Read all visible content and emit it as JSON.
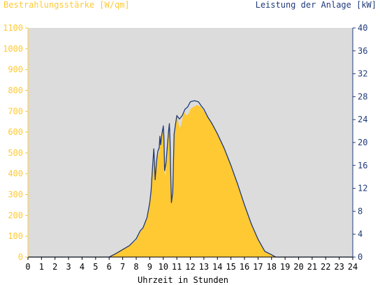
{
  "chart_data": {
    "type": "area",
    "left_axis_title": "Bestrahlungsstärke [W/qm]",
    "right_axis_title": "Leistung der Anlage [kW]",
    "xlabel": "Uhrzeit in Stunden",
    "x_ticks": [
      "0",
      "1",
      "2",
      "3",
      "4",
      "5",
      "6",
      "7",
      "8",
      "9",
      "10",
      "11",
      "12",
      "13",
      "14",
      "15",
      "16",
      "17",
      "18",
      "19",
      "20",
      "21",
      "22",
      "23",
      "24"
    ],
    "y_left_ticks": [
      "0",
      "100",
      "200",
      "300",
      "400",
      "500",
      "600",
      "700",
      "800",
      "900",
      "1000",
      "1100"
    ],
    "y_right_ticks": [
      "0",
      "4",
      "8",
      "12",
      "16",
      "20",
      "24",
      "28",
      "32",
      "36",
      "40"
    ],
    "xlim": [
      0,
      24
    ],
    "ylim_left": [
      0,
      1100
    ],
    "ylim_right": [
      0,
      40
    ],
    "grid": false,
    "colors": {
      "plot_background": "#dcdcdc",
      "left_axis": "#ffc933",
      "right_axis": "#1f3a7a",
      "irradiance_fill": "#ffc933",
      "power_line": "#1f3a7a"
    },
    "series": [
      {
        "name": "Bestrahlungsstärke [W/qm]",
        "axis": "left",
        "kind": "area",
        "x": [
          0,
          6.0,
          6.2,
          6.5,
          7.0,
          7.5,
          8.0,
          8.3,
          8.5,
          8.8,
          9.0,
          9.1,
          9.2,
          9.3,
          9.35,
          9.4,
          9.5,
          9.6,
          9.65,
          9.7,
          9.75,
          9.8,
          9.9,
          9.95,
          10.0,
          10.05,
          10.1,
          10.15,
          10.2,
          10.3,
          10.4,
          10.45,
          10.5,
          10.55,
          10.6,
          10.7,
          10.8,
          10.9,
          11.0,
          11.05,
          11.1,
          11.2,
          11.3,
          11.4,
          11.5,
          11.7,
          11.9,
          12.0,
          12.2,
          12.5,
          12.8,
          13.0,
          13.3,
          13.6,
          14.0,
          14.5,
          15.0,
          15.5,
          16.0,
          16.5,
          17.0,
          17.5,
          18.0,
          18.3,
          18.5,
          18.8,
          19.0,
          19.2,
          24
        ],
        "y": [
          0,
          0,
          10,
          20,
          40,
          55,
          80,
          120,
          140,
          190,
          260,
          310,
          420,
          470,
          430,
          370,
          460,
          500,
          480,
          520,
          580,
          530,
          580,
          600,
          620,
          560,
          410,
          380,
          430,
          520,
          610,
          640,
          560,
          400,
          260,
          300,
          580,
          640,
          680,
          690,
          650,
          620,
          630,
          660,
          700,
          680,
          690,
          710,
          720,
          730,
          720,
          700,
          670,
          640,
          590,
          520,
          440,
          350,
          250,
          160,
          90,
          30,
          10,
          0,
          0,
          0,
          0,
          0,
          0
        ]
      },
      {
        "name": "Leistung der Anlage [kW]",
        "axis": "right",
        "kind": "line",
        "x": [
          0,
          6.0,
          6.5,
          7.0,
          7.5,
          8.0,
          8.3,
          8.5,
          8.8,
          9.0,
          9.1,
          9.2,
          9.3,
          9.35,
          9.4,
          9.5,
          9.6,
          9.7,
          9.75,
          9.8,
          9.9,
          10.0,
          10.05,
          10.1,
          10.2,
          10.4,
          10.45,
          10.5,
          10.55,
          10.6,
          10.7,
          10.8,
          11.0,
          11.2,
          11.4,
          11.6,
          11.8,
          12.0,
          12.3,
          12.6,
          12.8,
          13.0,
          13.3,
          13.6,
          14.0,
          14.5,
          15.0,
          15.5,
          16.0,
          16.5,
          17.0,
          17.5,
          18.0,
          18.3,
          18.5,
          18.8,
          19.0,
          19.2,
          24
        ],
        "y": [
          0,
          0,
          0.6,
          1.3,
          2.0,
          3.2,
          4.6,
          5.1,
          6.9,
          9.5,
          11.6,
          15.5,
          18.9,
          16.4,
          13.5,
          16.7,
          18.5,
          19.1,
          21.1,
          19.6,
          21.5,
          22.9,
          20.7,
          15.1,
          16.4,
          22.2,
          23.3,
          20.4,
          14.5,
          9.5,
          11.3,
          21.5,
          24.7,
          24.1,
          24.7,
          25.8,
          26.2,
          27.1,
          27.3,
          27.1,
          26.4,
          25.8,
          24.4,
          23.3,
          21.5,
          19.0,
          16.0,
          12.7,
          9.1,
          5.8,
          3.1,
          1.0,
          0.4,
          0,
          0,
          0,
          0,
          0,
          0
        ]
      }
    ]
  }
}
